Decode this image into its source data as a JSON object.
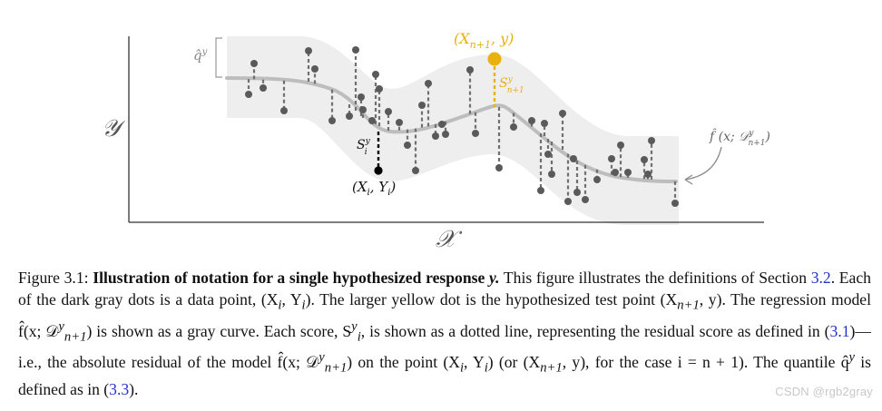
{
  "figure": {
    "y_axis_label": "𝒴",
    "x_axis_label": "𝒳",
    "q_label": "q̂",
    "q_sup": "y",
    "hyp_point_label": "(X",
    "hyp_point_sub": "n+1",
    "hyp_point_tail": ", y)",
    "hyp_score_label": "S",
    "hyp_score_sup": "y",
    "hyp_score_sub": "n+1",
    "data_score_label": "S",
    "data_score_sup": "y",
    "data_score_sub": "i",
    "data_point_label": "(X",
    "data_point_sub": "i",
    "data_point_mid": ", Y",
    "data_point_sub2": "i",
    "data_point_tail": ")",
    "model_label": "f̂ (x; 𝒟",
    "model_sup": "y",
    "model_sub": "n+1",
    "model_tail": ")",
    "colors": {
      "band": "#eeeeee",
      "curve": "#bdbdbd",
      "dots": "#5a5a5a",
      "highlight_point": "#000000",
      "hypothesized": "#e8b10e",
      "axis": "#333333",
      "arrow": "#8a8a8a"
    }
  },
  "caption": {
    "figure_number": "Figure 3.1:",
    "title": "Illustration of notation for a single hypothesized response",
    "title_var": "y.",
    "s1": "This figure illustrates the definitions of Section",
    "ref_section": "3.2",
    "s2": ". Each of the dark gray dots is a data point, (X",
    "s2_sub": "i",
    "s2_mid": ", Y",
    "s2_sub2": "i",
    "s2_end": "). The larger yellow dot is the hypothesized test point (X",
    "s3_sub": "n+1",
    "s3_end": ", y). The regression model f̂(x; 𝒟",
    "s3_sup": "y",
    "s3_sub2": "n+1",
    "s3_tail": ") is shown as a gray curve. Each score, S",
    "s4_sup": "y",
    "s4_sub": "i",
    "s4_mid": ", is shown as a dotted line, representing the residual score as defined in (",
    "ref_eq1": "3.1",
    "s4_end": ")—i.e., the absolute residual of the model f̂(x; 𝒟",
    "s5_sup": "y",
    "s5_sub": "n+1",
    "s5_mid": ") on the point (X",
    "s5_sub2": "i",
    "s5_mid2": ", Y",
    "s5_sub3": "i",
    "s5_mid3": ") (or (X",
    "s5_sub4": "n+1",
    "s5_end": ", y), for the case i = n + 1). The quantile q̂",
    "s6_sup": "y",
    "s6_mid": " is defined as in (",
    "ref_eq2": "3.3",
    "s6_end": ")."
  },
  "watermark": "CSDN @rgb2gray"
}
